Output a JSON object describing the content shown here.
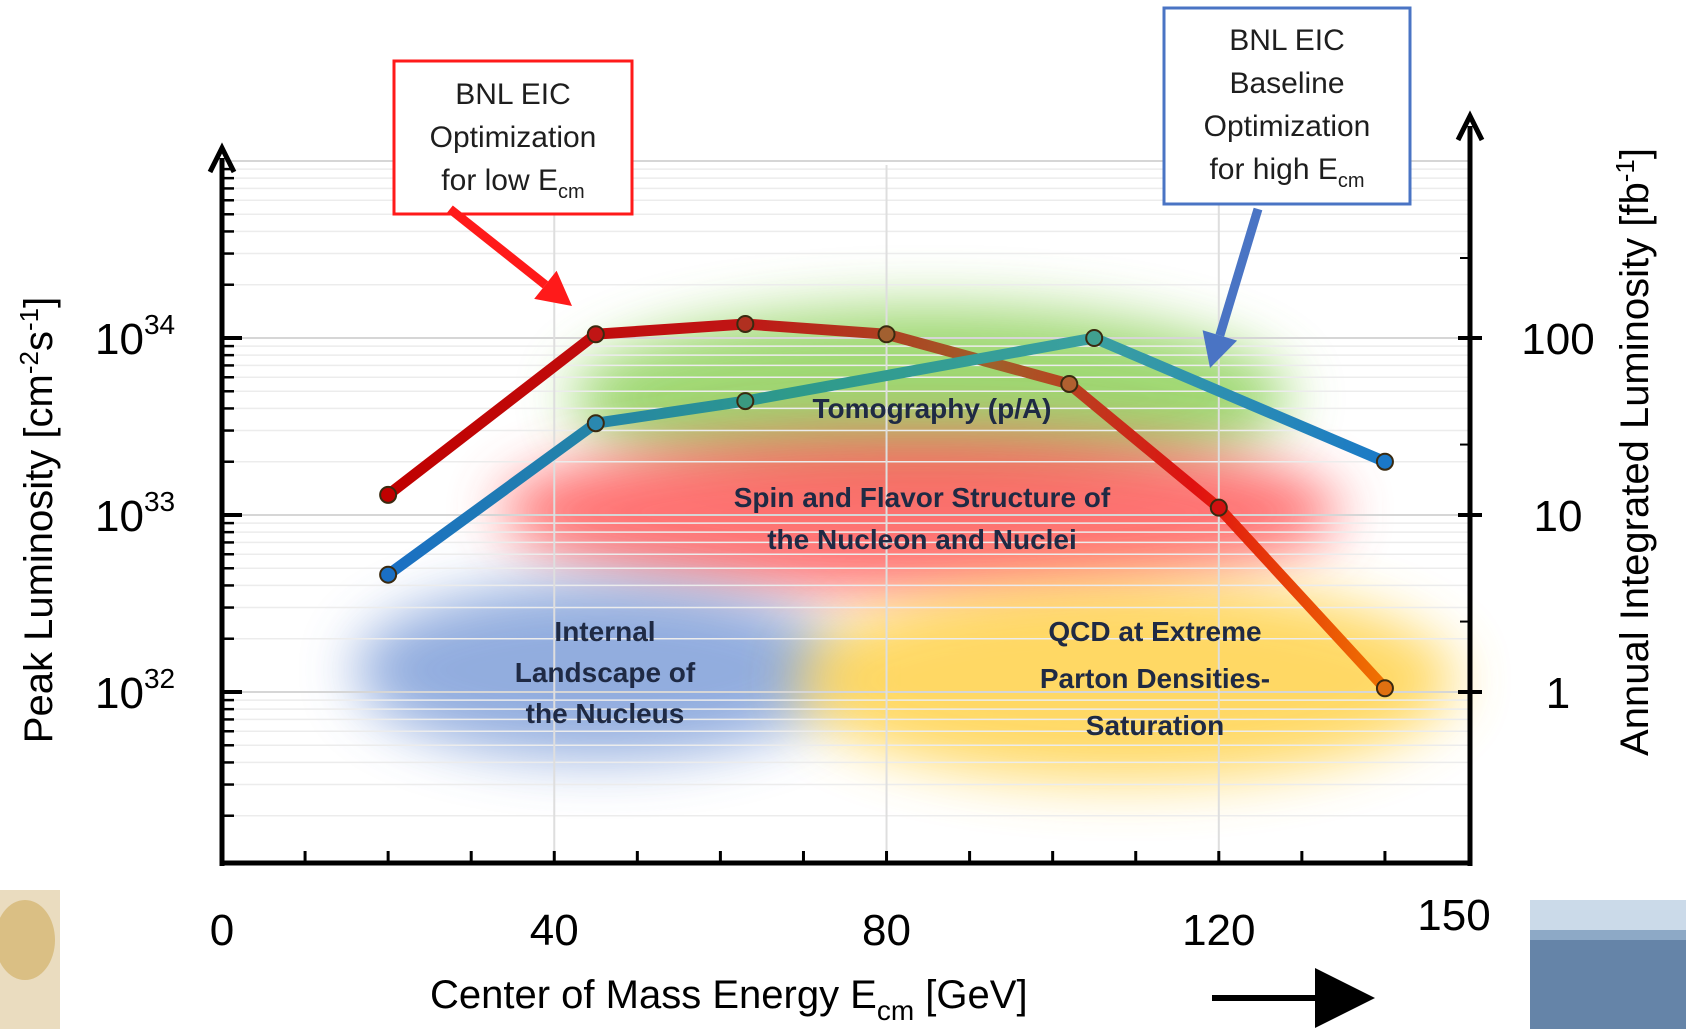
{
  "chart_data": {
    "type": "line",
    "xlabel": {
      "main": "Center of Mass Energy E",
      "sub": "cm",
      "unit": " [GeV]"
    },
    "ylabel_left": {
      "main": "Peak Luminosity [cm",
      "sup1": "-2",
      "mid": "s",
      "sup2": "-1",
      "end": "]"
    },
    "ylabel_right": {
      "main": "Annual Integrated Luminosity [fb",
      "sup": "-1",
      "end": "]"
    },
    "xlim": [
      0,
      150
    ],
    "ylim_left": [
      1e+31,
      1e+35
    ],
    "y_scale": "log",
    "x_ticks": [
      {
        "value": 0,
        "label": "0"
      },
      {
        "value": 40,
        "label": "40"
      },
      {
        "value": 80,
        "label": "80"
      },
      {
        "value": 120,
        "label": "120"
      },
      {
        "value": 150,
        "label": "150"
      }
    ],
    "y_left_ticks": [
      {
        "value": 1e+32,
        "base": "10",
        "exp": "32"
      },
      {
        "value": 1e+33,
        "base": "10",
        "exp": "33"
      },
      {
        "value": 1e+34,
        "base": "10",
        "exp": "34"
      }
    ],
    "y_right_ticks": [
      {
        "value": 1e+32,
        "label": "1"
      },
      {
        "value": 1e+33,
        "label": "10"
      },
      {
        "value": 1e+34,
        "label": "100"
      }
    ],
    "grid": true,
    "series": [
      {
        "style": "red-to-orange",
        "x": [
          20,
          45,
          63,
          80,
          102,
          120,
          140
        ],
        "y": [
          1.3e+33,
          1.05e+34,
          1.2e+34,
          1.05e+34,
          5.5e+33,
          1.1e+33,
          1.05e+32
        ]
      },
      {
        "style": "blue-to-teal",
        "x": [
          20,
          45,
          63,
          105,
          140
        ],
        "y": [
          4.6e+32,
          3.3e+33,
          4.4e+33,
          1e+34,
          2e+33
        ]
      }
    ],
    "regions": [
      {
        "name": "tomography",
        "lines": [
          "Tomography (p/A)"
        ],
        "color": "#8ed15a"
      },
      {
        "name": "spin-flavor",
        "lines": [
          "Spin and Flavor Structure of",
          "the Nucleon and Nuclei"
        ],
        "color": "#ff5a5a"
      },
      {
        "name": "internal-landscape",
        "lines": [
          "Internal",
          "Landscape of",
          "the Nucleus"
        ],
        "color": "#7f9fd9"
      },
      {
        "name": "qcd-saturation",
        "lines": [
          "QCD at Extreme",
          "Parton Densities-",
          "Saturation"
        ],
        "color": "#ffd24a"
      }
    ],
    "callouts": [
      {
        "name": "low-ecm",
        "lines": [
          "BNL EIC",
          "Optimization"
        ],
        "last": {
          "pre": "for  low E",
          "sub": "cm"
        },
        "color": "#ff1a1a"
      },
      {
        "name": "high-ecm",
        "lines": [
          "BNL EIC",
          "Baseline",
          "Optimization"
        ],
        "last": {
          "pre": "for  high E",
          "sub": "cm"
        },
        "color": "#4a74c4"
      }
    ]
  }
}
